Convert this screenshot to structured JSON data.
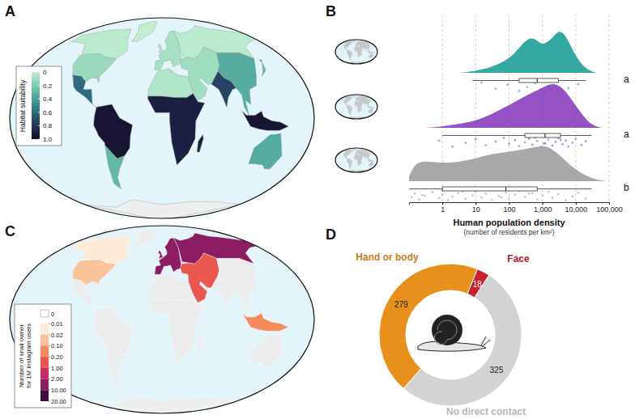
{
  "chart_data": [
    {
      "type": "map",
      "title": "A",
      "values": [
        0.02,
        0.12,
        0.6,
        0,
        0.95,
        0.3,
        0.08,
        0.05,
        0.02,
        0.1,
        0.05,
        0.9,
        0.9,
        0.75,
        0.35,
        0.3,
        0.95,
        0.35,
        null
      ],
      "colorbar": {
        "title": "Habitat suitability",
        "range": [
          0,
          1
        ],
        "ticks": [
          0,
          0.2,
          0.4,
          0.6,
          0.8,
          {
            "value": 1,
            "label": "1.0"
          }
        ]
      }
    },
    {
      "type": "density",
      "title": "B",
      "xlabel": "Human population density",
      "subtitle": "(number of residents per km²)",
      "log": "x",
      "grid": true,
      "tick_labels": "x",
      "xlim": [
        0.1,
        100000
      ],
      "xticks": [
        1,
        10,
        100,
        {
          "value": 1000,
          "label": "1,000"
        },
        {
          "value": 10000,
          "label": "10,000"
        },
        {
          "value": 100000,
          "label": "100,000"
        }
      ],
      "ylim": [
        0,
        1
      ],
      "series": [
        {
          "color": "#1f9e98",
          "label": "a",
          "x": [
            3,
            10,
            30,
            100,
            200,
            400,
            700,
            1000,
            2000,
            3000,
            5000,
            10000,
            20000,
            40000
          ],
          "values": [
            0,
            0.04,
            0.12,
            0.3,
            0.55,
            0.8,
            0.72,
            0.6,
            0.75,
            0.95,
            0.85,
            0.35,
            0.08,
            0
          ],
          "box": {
            "min": 8,
            "q1": 200,
            "median": 700,
            "q3": 3000,
            "max": 20000
          },
          "points": [
            15,
            40,
            90,
            200,
            350,
            600,
            900,
            1500,
            3000,
            6000,
            12000
          ]
        },
        {
          "color": "#8a3fbf",
          "label": "a",
          "x": [
            0.3,
            1,
            3,
            10,
            30,
            100,
            300,
            1000,
            2000,
            4000,
            8000,
            15000,
            30000,
            60000
          ],
          "values": [
            0,
            0.03,
            0.08,
            0.15,
            0.3,
            0.5,
            0.7,
            0.88,
            1.0,
            0.9,
            0.6,
            0.3,
            0.05,
            0
          ],
          "box": {
            "min": 1,
            "q1": 300,
            "median": 1200,
            "q3": 3500,
            "max": 30000
          },
          "points": [
            0.8,
            2,
            5,
            10,
            20,
            40,
            70,
            100,
            150,
            200,
            300,
            400,
            500,
            700,
            900,
            1200,
            1500,
            2000,
            2500,
            3000,
            4000,
            5000,
            6000,
            8000,
            10000,
            15000,
            20000,
            600,
            1100,
            3500
          ]
        },
        {
          "color": "#9e9e9e",
          "label": "b",
          "x": [
            0.1,
            0.15,
            0.3,
            1,
            3,
            10,
            30,
            100,
            300,
            1000,
            2000,
            5000,
            10000,
            30000,
            80000
          ],
          "values": [
            0.1,
            0.4,
            0.45,
            0.4,
            0.42,
            0.5,
            0.6,
            0.65,
            0.7,
            0.8,
            0.72,
            0.45,
            0.25,
            0.05,
            0
          ],
          "box": {
            "min": 0.1,
            "q1": 1,
            "median": 80,
            "q3": 700,
            "max": 30000
          },
          "points": [
            0.12,
            0.15,
            0.2,
            0.3,
            0.5,
            0.8,
            1,
            1.5,
            2,
            3,
            5,
            8,
            10,
            15,
            20,
            30,
            50,
            80,
            100,
            150,
            200,
            300,
            500,
            700,
            1000,
            1500,
            2000,
            3000,
            5000,
            8000,
            12000,
            20000,
            0.25,
            4,
            60,
            400
          ]
        }
      ]
    },
    {
      "type": "map",
      "title": "C",
      "values": [
        0.01,
        0.03,
        0,
        0,
        0,
        0,
        5,
        5,
        2.5,
        0.5,
        0,
        0,
        0,
        0,
        0,
        0,
        0.15,
        0,
        null
      ],
      "colorbar": {
        "title": [
          "Number of snail owner",
          "for 1M Instagram users"
        ],
        "breaks": [
          0,
          0.01,
          0.02,
          {
            "value": 0.1,
            "label": "0.10"
          },
          {
            "value": 0.2,
            "label": "0.20"
          },
          {
            "value": 1,
            "label": "1.00"
          },
          {
            "value": 2,
            "label": "2.00"
          },
          {
            "value": 10,
            "label": "10.00"
          },
          {
            "value": 20,
            "label": "20.00"
          }
        ],
        "colors": [
          "#ececec",
          "#fdebd8",
          "#fbc39a",
          "#f58a5c",
          "#e8584f",
          "#c42d60",
          "#8c1d63",
          "#3f0c40"
        ]
      }
    },
    {
      "type": "donut",
      "title": "D",
      "categories": [
        "Hand or body",
        "Face",
        "No direct contact"
      ],
      "values": [
        279,
        18,
        325
      ],
      "colors": [
        "#e8901c",
        "#c8202f",
        "#d3d3d3"
      ],
      "data_labels": true
    }
  ]
}
